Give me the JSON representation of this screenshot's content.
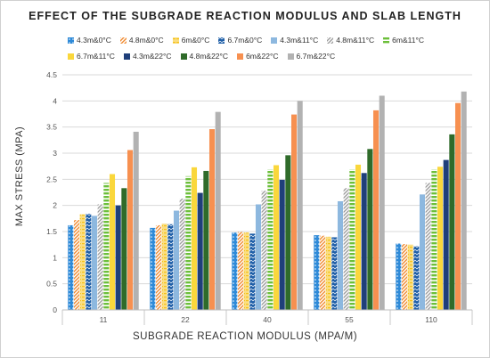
{
  "chart_data": {
    "type": "bar",
    "title": "EFFECT OF THE SUBGRADE REACTION MODULUS AND SLAB LENGTH",
    "xlabel": "SUBGRADE REACTION MODULUS (MPA/M)",
    "ylabel": "MAX STRESS (MPA)",
    "categories": [
      "11",
      "22",
      "40",
      "55",
      "110"
    ],
    "ylim": [
      0,
      4.5
    ],
    "yticks": [
      0,
      0.5,
      1,
      1.5,
      2,
      2.5,
      3,
      3.5,
      4,
      4.5
    ],
    "ytick_labels": [
      "0",
      "0.5",
      "1",
      "1.5",
      "2",
      "2.5",
      "3",
      "3.5",
      "4",
      "4.5"
    ],
    "grid": true,
    "legend_position": "top",
    "series": [
      {
        "name": "4.3m&0°C",
        "color": "#2e8ad8",
        "pattern": "dots",
        "values": [
          1.62,
          1.57,
          1.48,
          1.43,
          1.27
        ]
      },
      {
        "name": "4.8m&0°C",
        "color": "#f08a30",
        "pattern": "diag-right",
        "values": [
          1.72,
          1.62,
          1.49,
          1.42,
          1.26
        ]
      },
      {
        "name": "6m&0°C",
        "color": "#f6c21c",
        "pattern": "dashes",
        "values": [
          1.83,
          1.65,
          1.48,
          1.4,
          1.25
        ]
      },
      {
        "name": "6.7m&0°C",
        "color": "#1f5fa8",
        "pattern": "zigzag",
        "values": [
          1.84,
          1.64,
          1.46,
          1.39,
          1.22
        ]
      },
      {
        "name": "4.3m&11°C",
        "color": "#8db8df",
        "pattern": "solid",
        "values": [
          1.8,
          1.9,
          2.02,
          2.08,
          2.21
        ]
      },
      {
        "name": "4.8m&11°C",
        "color": "#9e9e9e",
        "pattern": "diag-right",
        "values": [
          2.02,
          2.13,
          2.28,
          2.33,
          2.43
        ]
      },
      {
        "name": "6m&11°C",
        "color": "#6cbf3a",
        "pattern": "horiz",
        "values": [
          2.43,
          2.56,
          2.69,
          2.69,
          2.69
        ]
      },
      {
        "name": "6.7m&11°C",
        "color": "#fad73c",
        "pattern": "solid",
        "values": [
          2.6,
          2.73,
          2.77,
          2.78,
          2.74
        ]
      },
      {
        "name": "4.3m&22°C",
        "color": "#1f3f7a",
        "pattern": "solid",
        "values": [
          2.0,
          2.24,
          2.49,
          2.62,
          2.87
        ]
      },
      {
        "name": "4.8m&22°C",
        "color": "#2f6b2a",
        "pattern": "solid",
        "values": [
          2.33,
          2.66,
          2.96,
          3.08,
          3.36
        ]
      },
      {
        "name": "6m&22°C",
        "color": "#f79050",
        "pattern": "solid",
        "values": [
          3.06,
          3.46,
          3.74,
          3.82,
          3.96
        ]
      },
      {
        "name": "6.7m&22°C",
        "color": "#b2b2b2",
        "pattern": "solid",
        "values": [
          3.41,
          3.79,
          4.0,
          4.1,
          4.18
        ]
      }
    ]
  }
}
